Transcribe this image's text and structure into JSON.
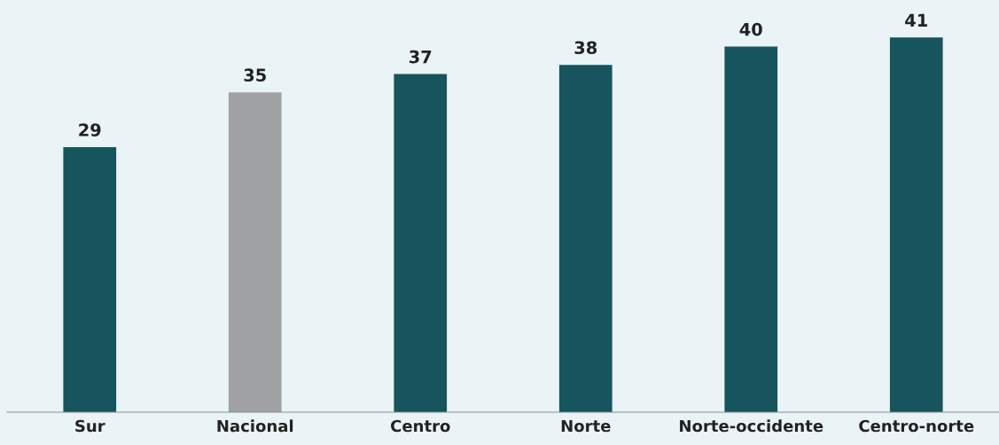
{
  "chart_data": {
    "type": "bar",
    "categories": [
      "Sur",
      "Nacional",
      "Centro",
      "Norte",
      "Norte-occidente",
      "Centro-norte"
    ],
    "values": [
      29,
      35,
      37,
      38,
      40,
      41
    ],
    "colors": [
      "#16545e",
      "#a0a1a3",
      "#16545e",
      "#16545e",
      "#16545e",
      "#16545e"
    ],
    "data_labels": true,
    "grid": false,
    "legend": false
  }
}
